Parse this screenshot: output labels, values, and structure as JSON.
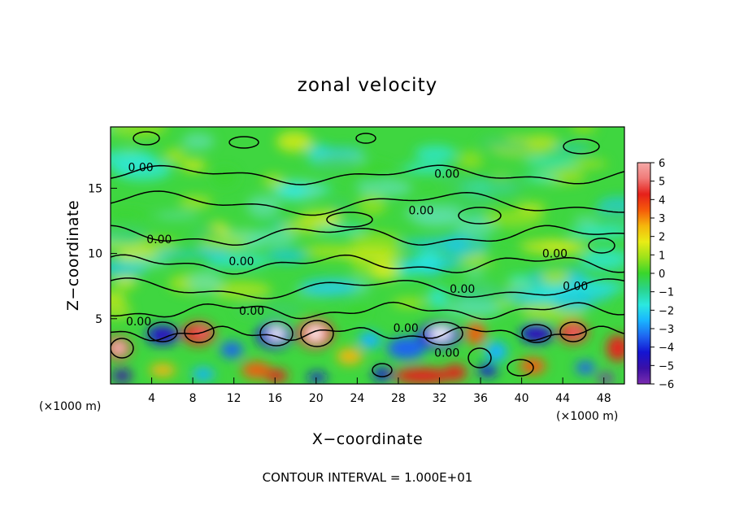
{
  "chart_data": {
    "type": "heatmap",
    "title": "zonal velocity",
    "xlabel": "X−coordinate",
    "ylabel": "Z−coordinate",
    "x_unit_left": "(×1000 m)",
    "x_unit_right": "(×1000 m)",
    "x_ticks": [
      "4",
      "8",
      "12",
      "16",
      "20",
      "24",
      "28",
      "32",
      "36",
      "40",
      "44",
      "48"
    ],
    "y_ticks": [
      "5",
      "10",
      "15"
    ],
    "xlim": [
      0,
      50
    ],
    "ylim": [
      0,
      19.7
    ],
    "colorbar_ticks": [
      "6",
      "5",
      "4",
      "3",
      "2",
      "1",
      "0",
      "−1",
      "−2",
      "−3",
      "−4",
      "−5",
      "−6"
    ],
    "colorbar_range": [
      -6,
      6
    ],
    "contour_labels": [
      {
        "text": "0.00",
        "x": 1.7,
        "z": 16.6
      },
      {
        "text": "0.00",
        "x": 31.5,
        "z": 16.1
      },
      {
        "text": "0.00",
        "x": 29.0,
        "z": 13.3
      },
      {
        "text": "0.00",
        "x": 3.5,
        "z": 11.1
      },
      {
        "text": "0.00",
        "x": 11.5,
        "z": 9.4
      },
      {
        "text": "0.00",
        "x": 42.0,
        "z": 10.0
      },
      {
        "text": "0.00",
        "x": 33.0,
        "z": 7.3
      },
      {
        "text": "0.00",
        "x": 44.0,
        "z": 7.5
      },
      {
        "text": "0.00",
        "x": 12.5,
        "z": 5.6
      },
      {
        "text": "0.00",
        "x": 1.5,
        "z": 4.8
      },
      {
        "text": "0.00",
        "x": 27.5,
        "z": 4.3
      },
      {
        "text": "0.00",
        "x": 31.5,
        "z": 2.4
      }
    ],
    "footer": "CONTOUR INTERVAL = 1.000E+01",
    "colors": [
      "#7b2cb0",
      "#3a10a6",
      "#1414d2",
      "#1e64f0",
      "#19b4ff",
      "#2be8e0",
      "#2ad38a",
      "#39d62b",
      "#9be21a",
      "#e9ec16",
      "#f5b60c",
      "#f55a0a",
      "#e6201a",
      "#f07a78",
      "#f5aaa8"
    ]
  }
}
